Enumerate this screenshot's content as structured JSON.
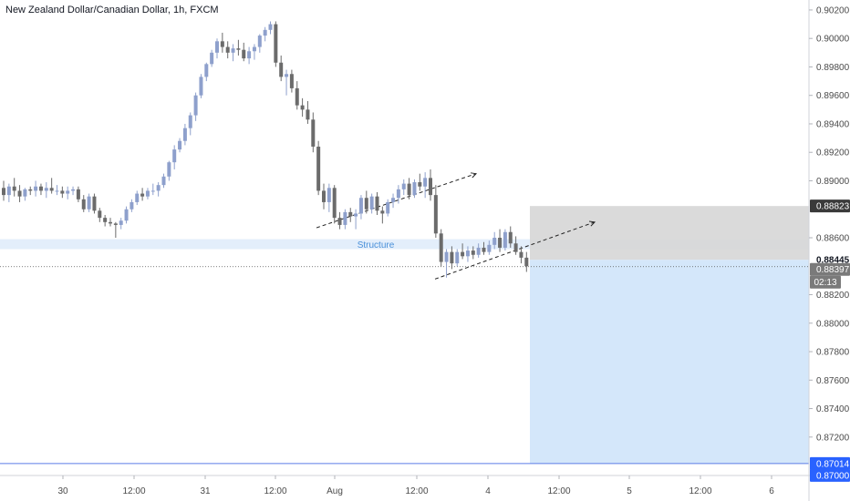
{
  "title": "New Zealand Dollar/Canadian Dollar, 1h, FXCM",
  "colors": {
    "bull": "#8ea0cc",
    "bear": "#6b6b6b",
    "structure_zone": "#e3eefb",
    "structure_text": "#4a90d9",
    "target_zone": "#cfe4fa",
    "stop_zone": "#d6d6d6",
    "target_line": "#5b7ce6",
    "badge_dark": "#3a3a3a",
    "badge_blue": "#2962ff",
    "badge_grey": "#7a7a7a"
  },
  "chart_data": {
    "type": "candlestick",
    "title": "New Zealand Dollar/Canadian Dollar, 1h, FXCM",
    "ylim": [
      0.8693,
      0.9027
    ],
    "y_ticks": [
      "0.90200",
      "0.90000",
      "0.89800",
      "0.89600",
      "0.89400",
      "0.89200",
      "0.89000",
      "0.88600",
      "0.88200",
      "0.88000",
      "0.87800",
      "0.87600",
      "0.87400",
      "0.87200"
    ],
    "x_ticks": [
      "30",
      "12:00",
      "31",
      "12:00",
      "Aug",
      "12:00",
      "4",
      "12:00",
      "5",
      "12:00",
      "6"
    ],
    "price_labels": [
      {
        "value": "0.88823",
        "style": "dark"
      },
      {
        "value": "0.88445",
        "style": "plain"
      },
      {
        "value": "0.88397",
        "style": "grey"
      },
      {
        "value": "02:13",
        "style": "grey"
      },
      {
        "value": "0.87014",
        "style": "blue"
      },
      {
        "value": "0.87000",
        "style": "blue"
      }
    ],
    "annotations": [
      {
        "text": "Structure",
        "zone": [
          0.8852,
          0.8859
        ]
      }
    ],
    "position": {
      "entry": 0.88445,
      "stop": 0.88823,
      "target": 0.87014,
      "current": 0.88397
    },
    "trend_lines": [
      {
        "from": [
          0.8867
        ],
        "to": [
          0.8905
        ],
        "dashed": true
      },
      {
        "from": [
          0.8831
        ],
        "to": [
          0.8871
        ],
        "dashed": true
      }
    ],
    "candles": [
      [
        0.8895,
        0.89,
        0.8886,
        0.889
      ],
      [
        0.889,
        0.8898,
        0.8885,
        0.8896
      ],
      [
        0.8896,
        0.8902,
        0.8889,
        0.8893
      ],
      [
        0.8893,
        0.8897,
        0.8885,
        0.8889
      ],
      [
        0.8889,
        0.8895,
        0.8886,
        0.8894
      ],
      [
        0.8894,
        0.8896,
        0.889,
        0.8893
      ],
      [
        0.8893,
        0.89,
        0.8889,
        0.8896
      ],
      [
        0.8896,
        0.8898,
        0.889,
        0.8893
      ],
      [
        0.8893,
        0.8899,
        0.8888,
        0.8895
      ],
      [
        0.8895,
        0.8902,
        0.8891,
        0.8893
      ],
      [
        0.8893,
        0.8897,
        0.889,
        0.8893
      ],
      [
        0.8893,
        0.8896,
        0.8888,
        0.8891
      ],
      [
        0.8891,
        0.8896,
        0.8887,
        0.8893
      ],
      [
        0.8893,
        0.8896,
        0.889,
        0.8894
      ],
      [
        0.8894,
        0.8896,
        0.8885,
        0.8887
      ],
      [
        0.8887,
        0.889,
        0.8878,
        0.888
      ],
      [
        0.888,
        0.8891,
        0.8878,
        0.8889
      ],
      [
        0.8889,
        0.8891,
        0.8877,
        0.8879
      ],
      [
        0.8879,
        0.8881,
        0.8871,
        0.8874
      ],
      [
        0.8874,
        0.8876,
        0.8868,
        0.8871
      ],
      [
        0.8871,
        0.8874,
        0.8868,
        0.887
      ],
      [
        0.887,
        0.8871,
        0.886,
        0.8869
      ],
      [
        0.8869,
        0.8874,
        0.8866,
        0.8872
      ],
      [
        0.8872,
        0.8882,
        0.887,
        0.888
      ],
      [
        0.888,
        0.8887,
        0.8878,
        0.8885
      ],
      [
        0.8885,
        0.8893,
        0.8883,
        0.8891
      ],
      [
        0.8891,
        0.8895,
        0.8886,
        0.8889
      ],
      [
        0.8889,
        0.8895,
        0.8887,
        0.8893
      ],
      [
        0.8893,
        0.8898,
        0.889,
        0.8893
      ],
      [
        0.8893,
        0.8899,
        0.8889,
        0.8897
      ],
      [
        0.8897,
        0.8905,
        0.8895,
        0.8903
      ],
      [
        0.8903,
        0.8914,
        0.89,
        0.8913
      ],
      [
        0.8913,
        0.8925,
        0.8908,
        0.8922
      ],
      [
        0.8922,
        0.893,
        0.892,
        0.8928
      ],
      [
        0.8928,
        0.894,
        0.8925,
        0.8937
      ],
      [
        0.8937,
        0.8948,
        0.8932,
        0.8946
      ],
      [
        0.8946,
        0.8962,
        0.8942,
        0.896
      ],
      [
        0.896,
        0.8975,
        0.8958,
        0.8973
      ],
      [
        0.8973,
        0.8983,
        0.897,
        0.8982
      ],
      [
        0.8982,
        0.8992,
        0.898,
        0.899
      ],
      [
        0.899,
        0.9,
        0.8986,
        0.8998
      ],
      [
        0.8998,
        0.9004,
        0.899,
        0.8994
      ],
      [
        0.8994,
        0.8998,
        0.8986,
        0.899
      ],
      [
        0.899,
        0.8996,
        0.8984,
        0.8993
      ],
      [
        0.8993,
        0.8999,
        0.8988,
        0.8992
      ],
      [
        0.8992,
        0.8997,
        0.8984,
        0.8986
      ],
      [
        0.8986,
        0.8994,
        0.8982,
        0.8991
      ],
      [
        0.8991,
        0.8996,
        0.8985,
        0.8994
      ],
      [
        0.8994,
        0.9003,
        0.899,
        0.9002
      ],
      [
        0.9002,
        0.9008,
        0.8998,
        0.9006
      ],
      [
        0.9006,
        0.9012,
        0.9003,
        0.901
      ],
      [
        0.901,
        0.9012,
        0.898,
        0.8983
      ],
      [
        0.8983,
        0.8988,
        0.897,
        0.8973
      ],
      [
        0.8973,
        0.8978,
        0.896,
        0.8975
      ],
      [
        0.8975,
        0.8978,
        0.8962,
        0.8965
      ],
      [
        0.8965,
        0.897,
        0.895,
        0.8953
      ],
      [
        0.8953,
        0.8958,
        0.8945,
        0.895
      ],
      [
        0.895,
        0.8956,
        0.894,
        0.8943
      ],
      [
        0.8943,
        0.8948,
        0.892,
        0.8924
      ],
      [
        0.8924,
        0.8928,
        0.889,
        0.8893
      ],
      [
        0.8893,
        0.8898,
        0.888,
        0.8885
      ],
      [
        0.8885,
        0.8898,
        0.8878,
        0.8895
      ],
      [
        0.8895,
        0.8897,
        0.887,
        0.8874
      ],
      [
        0.8874,
        0.8878,
        0.8866,
        0.8869
      ],
      [
        0.8869,
        0.888,
        0.8866,
        0.8878
      ],
      [
        0.8878,
        0.8881,
        0.8871,
        0.8875
      ],
      [
        0.8875,
        0.888,
        0.8866,
        0.8877
      ],
      [
        0.8877,
        0.889,
        0.8873,
        0.8888
      ],
      [
        0.8888,
        0.8893,
        0.8877,
        0.888
      ],
      [
        0.888,
        0.8891,
        0.8877,
        0.8889
      ],
      [
        0.8889,
        0.8892,
        0.8876,
        0.8879
      ],
      [
        0.8879,
        0.8882,
        0.887,
        0.8877
      ],
      [
        0.8877,
        0.8887,
        0.8875,
        0.8885
      ],
      [
        0.8885,
        0.8891,
        0.8881,
        0.8888
      ],
      [
        0.8888,
        0.8897,
        0.8884,
        0.8894
      ],
      [
        0.8894,
        0.8901,
        0.889,
        0.8898
      ],
      [
        0.8898,
        0.8902,
        0.8887,
        0.889
      ],
      [
        0.889,
        0.8901,
        0.8888,
        0.8899
      ],
      [
        0.8899,
        0.8905,
        0.8893,
        0.8896
      ],
      [
        0.8896,
        0.8906,
        0.8888,
        0.8902
      ],
      [
        0.8902,
        0.8908,
        0.8886,
        0.889
      ],
      [
        0.889,
        0.8897,
        0.886,
        0.8863
      ],
      [
        0.8863,
        0.8866,
        0.884,
        0.8843
      ],
      [
        0.8843,
        0.8852,
        0.8832,
        0.885
      ],
      [
        0.885,
        0.8854,
        0.8838,
        0.8842
      ],
      [
        0.8842,
        0.8852,
        0.884,
        0.885
      ],
      [
        0.885,
        0.8856,
        0.8845,
        0.8847
      ],
      [
        0.8847,
        0.8854,
        0.8843,
        0.8851
      ],
      [
        0.8851,
        0.8854,
        0.8845,
        0.8848
      ],
      [
        0.8848,
        0.8856,
        0.8846,
        0.8853
      ],
      [
        0.8853,
        0.8857,
        0.8848,
        0.885
      ],
      [
        0.885,
        0.8858,
        0.8848,
        0.8855
      ],
      [
        0.8855,
        0.8864,
        0.8852,
        0.886
      ],
      [
        0.886,
        0.8866,
        0.885,
        0.8853
      ],
      [
        0.8853,
        0.8866,
        0.8851,
        0.8864
      ],
      [
        0.8864,
        0.8868,
        0.8853,
        0.8856
      ],
      [
        0.8856,
        0.8861,
        0.8848,
        0.885
      ],
      [
        0.885,
        0.8854,
        0.8842,
        0.8846
      ],
      [
        0.8846,
        0.885,
        0.8836,
        0.884
      ]
    ]
  }
}
